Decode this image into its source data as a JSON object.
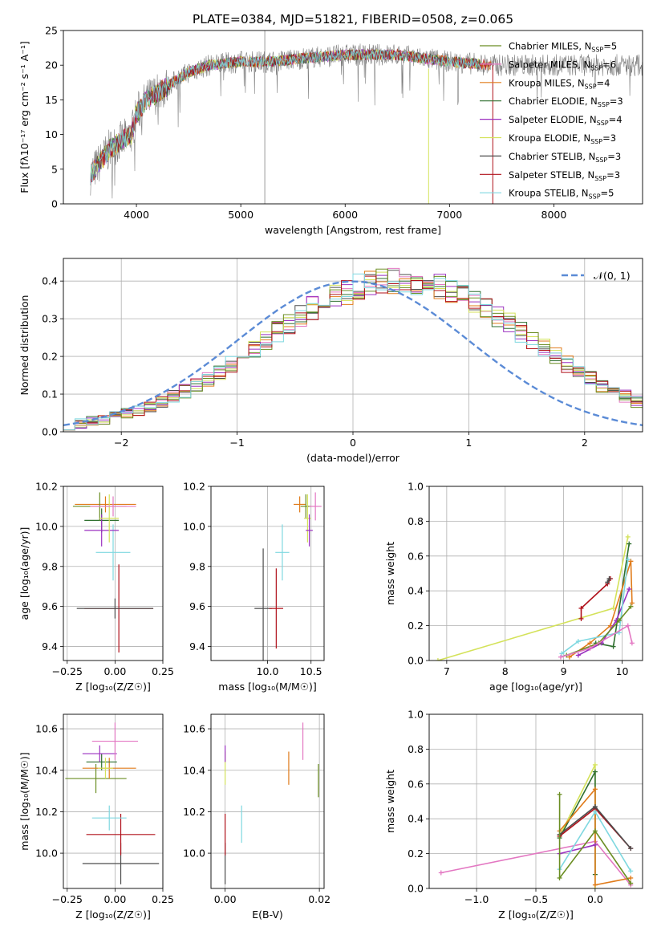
{
  "colors": {
    "series": [
      "#6b8e23",
      "#e377c2",
      "#e07b1a",
      "#2f6f2f",
      "#9b30c0",
      "#d4e25a",
      "#4d4d4d",
      "#b0101a",
      "#7fd8e0"
    ],
    "normal_curve": "#5b8bd6",
    "grid": "#b0b0b0"
  },
  "chart_data": [
    {
      "type": "line",
      "title": "PLATE=0384, MJD=51821, FIBERID=0508, z=0.065",
      "xlabel": "wavelength [Angstrom, rest frame]",
      "ylabel": "Flux [fλ10⁻¹⁷ erg cm⁻² s⁻¹ A⁻¹]",
      "xlim": [
        3300,
        8850
      ],
      "ylim": [
        0,
        25
      ],
      "xticks": [
        4000,
        5000,
        6000,
        7000,
        8000
      ],
      "yticks": [
        0,
        5,
        10,
        15,
        20,
        25
      ],
      "legend_position": "right",
      "series": [
        {
          "name": "Chabrier MILES, N_SSP=5"
        },
        {
          "name": "Salpeter MILES, N_SSP=6"
        },
        {
          "name": "Kroupa MILES, N_SSP=4"
        },
        {
          "name": "Chabrier ELODIE, N_SSP=3"
        },
        {
          "name": "Salpeter ELODIE, N_SSP=4"
        },
        {
          "name": "Kroupa ELODIE, N_SSP=3"
        },
        {
          "name": "Chabrier STELIB, N_SSP=3"
        },
        {
          "name": "Salpeter STELIB, N_SSP=3"
        },
        {
          "name": "Kroupa STELIB, N_SSP=5"
        }
      ],
      "continuum": {
        "x": [
          3550,
          3650,
          3750,
          3850,
          3950,
          4000,
          4100,
          4200,
          4300,
          4400,
          4500,
          4700,
          5000,
          5300,
          5600,
          6000,
          6500,
          7000,
          7400
        ],
        "y": [
          4,
          6,
          8,
          9,
          10,
          13,
          15,
          16,
          17,
          18,
          19,
          20,
          20.5,
          20.5,
          21,
          21.5,
          21.5,
          20.5,
          20
        ]
      }
    },
    {
      "type": "bar",
      "xlabel": "(data-model)/error",
      "ylabel": "Normed distribution",
      "xlim": [
        -2.5,
        2.5
      ],
      "ylim": [
        0,
        0.46
      ],
      "xticks": [
        -2,
        -1,
        0,
        1,
        2
      ],
      "yticks": [
        0.0,
        0.1,
        0.2,
        0.3,
        0.4
      ],
      "legend": [
        {
          "name": "𝒩(0, 1)"
        }
      ],
      "bin_width": 0.1,
      "bin_start": -2.5,
      "histogram_shape": [
        0.018,
        0.022,
        0.028,
        0.034,
        0.04,
        0.048,
        0.057,
        0.068,
        0.08,
        0.093,
        0.108,
        0.124,
        0.141,
        0.16,
        0.18,
        0.2,
        0.222,
        0.244,
        0.265,
        0.288,
        0.308,
        0.328,
        0.345,
        0.36,
        0.372,
        0.384,
        0.392,
        0.398,
        0.4,
        0.4,
        0.398,
        0.392,
        0.384,
        0.372,
        0.36,
        0.345,
        0.328,
        0.308,
        0.288,
        0.265,
        0.244,
        0.222,
        0.2,
        0.18,
        0.16,
        0.141,
        0.124,
        0.108,
        0.093,
        0.08
      ]
    },
    {
      "type": "scatter",
      "xlabel": "Z [log₁₀(Z/Z☉)]",
      "ylabel": "age  [log₁₀(age/yr)]",
      "xlim": [
        -0.27,
        0.25
      ],
      "ylim": [
        9.33,
        10.2
      ],
      "xticks": [
        -0.25,
        0.0,
        0.25
      ],
      "yticks": [
        9.4,
        9.6,
        9.8,
        10.0,
        10.2
      ],
      "points": [
        {
          "x": 0.02,
          "y": 9.59,
          "xerr": 0.18,
          "yerr": 0.22,
          "c": 7
        },
        {
          "x": 0.0,
          "y": 9.59,
          "xerr": 0.2,
          "yerr": 0.05,
          "c": 6
        },
        {
          "x": -0.01,
          "y": 9.87,
          "xerr": 0.09,
          "yerr": 0.14,
          "c": 8
        },
        {
          "x": -0.07,
          "y": 10.03,
          "xerr": 0.09,
          "yerr": 0.06,
          "c": 3
        },
        {
          "x": -0.05,
          "y": 10.11,
          "xerr": 0.16,
          "yerr": 0.04,
          "c": 2
        },
        {
          "x": -0.08,
          "y": 10.1,
          "xerr": 0.14,
          "yerr": 0.07,
          "c": 0
        },
        {
          "x": -0.07,
          "y": 9.98,
          "xerr": 0.09,
          "yerr": 0.08,
          "c": 4
        },
        {
          "x": -0.03,
          "y": 10.04,
          "xerr": 0.05,
          "yerr": 0.12,
          "c": 5
        },
        {
          "x": -0.01,
          "y": 10.1,
          "xerr": 0.12,
          "yerr": 0.05,
          "c": 1
        }
      ]
    },
    {
      "type": "scatter",
      "xlabel": "mass [log₁₀(M/M☉)]",
      "ylabel": "",
      "xlim": [
        9.35,
        10.65
      ],
      "ylim": [
        9.33,
        10.2
      ],
      "xticks": [
        10.0,
        10.5
      ],
      "yticks": [
        9.4,
        9.6,
        9.8,
        10.0,
        10.2
      ],
      "points": [
        {
          "x": 9.95,
          "y": 9.59,
          "xerr": 0.1,
          "yerr": 0.3,
          "c": 6
        },
        {
          "x": 10.1,
          "y": 9.59,
          "xerr": 0.08,
          "yerr": 0.2,
          "c": 7
        },
        {
          "x": 10.17,
          "y": 9.87,
          "xerr": 0.08,
          "yerr": 0.14,
          "c": 8
        },
        {
          "x": 10.37,
          "y": 10.11,
          "xerr": 0.07,
          "yerr": 0.04,
          "c": 2
        },
        {
          "x": 10.44,
          "y": 10.1,
          "xerr": 0.06,
          "yerr": 0.06,
          "c": 0
        },
        {
          "x": 10.46,
          "y": 10.04,
          "xerr": 0.04,
          "yerr": 0.12,
          "c": 5
        },
        {
          "x": 10.48,
          "y": 9.98,
          "xerr": 0.04,
          "yerr": 0.08,
          "c": 4
        },
        {
          "x": 10.55,
          "y": 10.1,
          "xerr": 0.07,
          "yerr": 0.07,
          "c": 1
        }
      ]
    },
    {
      "type": "line",
      "xlabel": "age  [log₁₀(age/yr)]",
      "ylabel": "mass weight",
      "xlim": [
        6.7,
        10.35
      ],
      "ylim": [
        0,
        1
      ],
      "xticks": [
        7,
        8,
        9,
        10
      ],
      "yticks": [
        0.0,
        0.2,
        0.4,
        0.6,
        0.8,
        1.0
      ],
      "series": [
        {
          "c": 5,
          "x": [
            6.85,
            9.85,
            10.1
          ],
          "y": [
            0.0,
            0.3,
            0.71
          ]
        },
        {
          "c": 3,
          "x": [
            9.55,
            9.85,
            10.12
          ],
          "y": [
            0.1,
            0.08,
            0.67
          ]
        },
        {
          "c": 2,
          "x": [
            9.1,
            9.45,
            9.8,
            10.15,
            10.17
          ],
          "y": [
            0.02,
            0.1,
            0.2,
            0.57,
            0.33
          ]
        },
        {
          "c": 7,
          "x": [
            9.3,
            9.3,
            9.75,
            9.8
          ],
          "y": [
            0.24,
            0.3,
            0.44,
            0.47
          ]
        },
        {
          "c": 4,
          "x": [
            9.25,
            9.65,
            9.9,
            10.12
          ],
          "y": [
            0.03,
            0.1,
            0.23,
            0.41
          ]
        },
        {
          "c": 8,
          "x": [
            8.97,
            9.25,
            9.95,
            10.1
          ],
          "y": [
            0.04,
            0.11,
            0.16,
            0.58
          ]
        },
        {
          "c": 0,
          "x": [
            9.05,
            9.6,
            9.95,
            10.15
          ],
          "y": [
            0.03,
            0.1,
            0.23,
            0.31
          ]
        },
        {
          "c": 1,
          "x": [
            8.95,
            9.45,
            10.1,
            10.17
          ],
          "y": [
            0.02,
            0.07,
            0.2,
            0.1
          ]
        },
        {
          "c": 6,
          "x": [
            9.75,
            9.78
          ],
          "y": [
            0.45,
            0.47
          ]
        }
      ]
    },
    {
      "type": "scatter",
      "xlabel": "Z [log₁₀(Z/Z☉)]",
      "ylabel": "mass [log₁₀(M/M☉)]",
      "xlim": [
        -0.27,
        0.25
      ],
      "ylim": [
        9.83,
        10.67
      ],
      "xticks": [
        -0.25,
        0.0,
        0.25
      ],
      "yticks": [
        10.0,
        10.2,
        10.4,
        10.6
      ],
      "points": [
        {
          "x": 0.03,
          "y": 9.95,
          "xerr": 0.2,
          "yerr": 0.1,
          "c": 6
        },
        {
          "x": 0.03,
          "y": 10.09,
          "xerr": 0.18,
          "yerr": 0.1,
          "c": 7
        },
        {
          "x": -0.03,
          "y": 10.17,
          "xerr": 0.09,
          "yerr": 0.06,
          "c": 8
        },
        {
          "x": -0.1,
          "y": 10.36,
          "xerr": 0.16,
          "yerr": 0.07,
          "c": 0
        },
        {
          "x": -0.03,
          "y": 10.41,
          "xerr": 0.14,
          "yerr": 0.05,
          "c": 2
        },
        {
          "x": -0.07,
          "y": 10.44,
          "xerr": 0.08,
          "yerr": 0.04,
          "c": 3
        },
        {
          "x": -0.05,
          "y": 10.41,
          "xerr": 0.04,
          "yerr": 0.05,
          "c": 5
        },
        {
          "x": -0.08,
          "y": 10.48,
          "xerr": 0.09,
          "yerr": 0.04,
          "c": 4
        },
        {
          "x": 0.0,
          "y": 10.54,
          "xerr": 0.12,
          "yerr": 0.09,
          "c": 1
        }
      ]
    },
    {
      "type": "scatter",
      "xlabel": "E(B-V)",
      "ylabel": "",
      "xlim": [
        -0.003,
        0.021
      ],
      "ylim": [
        9.83,
        10.67
      ],
      "xticks": [
        0.0,
        0.02
      ],
      "yticks": [
        10.0,
        10.2,
        10.4,
        10.6
      ],
      "points": [
        {
          "x": 0.0,
          "y": 9.95,
          "yerr": 0.1,
          "c": 6
        },
        {
          "x": 0.0,
          "y": 10.09,
          "yerr": 0.1,
          "c": 7
        },
        {
          "x": 0.0,
          "y": 10.41,
          "yerr": 0.08,
          "c": 5
        },
        {
          "x": 0.0,
          "y": 10.48,
          "yerr": 0.04,
          "c": 4
        },
        {
          "x": 0.0035,
          "y": 10.14,
          "yerr": 0.09,
          "c": 8
        },
        {
          "x": 0.0135,
          "y": 10.41,
          "yerr": 0.08,
          "c": 2
        },
        {
          "x": 0.0165,
          "y": 10.54,
          "yerr": 0.09,
          "c": 1
        },
        {
          "x": 0.0198,
          "y": 10.35,
          "yerr": 0.08,
          "c": 0
        }
      ]
    },
    {
      "type": "line",
      "xlabel": "Z [log₁₀(Z/Z☉)]",
      "ylabel": "mass weight",
      "xlim": [
        -1.4,
        0.4
      ],
      "ylim": [
        0,
        1
      ],
      "xticks": [
        -1.0,
        -0.5,
        0.0
      ],
      "yticks": [
        0.0,
        0.2,
        0.4,
        0.6,
        0.8,
        1.0
      ],
      "series": [
        {
          "c": 1,
          "x": [
            -1.3,
            0.0,
            0.3
          ],
          "y": [
            0.09,
            0.27,
            0.02
          ]
        },
        {
          "c": 5,
          "x": [
            -0.3,
            0.0,
            0.0
          ],
          "y": [
            0.3,
            0.71,
            0.0
          ]
        },
        {
          "c": 3,
          "x": [
            -0.3,
            0.0,
            0.0
          ],
          "y": [
            0.29,
            0.67,
            0.08
          ]
        },
        {
          "c": 2,
          "x": [
            -0.3,
            0.0,
            0.0,
            0.3
          ],
          "y": [
            0.33,
            0.57,
            0.02,
            0.06
          ]
        },
        {
          "c": 7,
          "x": [
            -0.3,
            0.0,
            0.3
          ],
          "y": [
            0.3,
            0.46,
            0.23
          ]
        },
        {
          "c": 6,
          "x": [
            -0.3,
            0.0,
            0.3
          ],
          "y": [
            0.31,
            0.47,
            0.23
          ]
        },
        {
          "c": 4,
          "x": [
            -0.3,
            0.0
          ],
          "y": [
            0.2,
            0.25
          ]
        },
        {
          "c": 8,
          "x": [
            -0.3,
            0.0,
            0.3
          ],
          "y": [
            0.11,
            0.44,
            0.1
          ]
        },
        {
          "c": 0,
          "x": [
            -0.3,
            -0.3,
            0.0,
            0.3
          ],
          "y": [
            0.54,
            0.06,
            0.33,
            0.03
          ]
        }
      ]
    }
  ]
}
